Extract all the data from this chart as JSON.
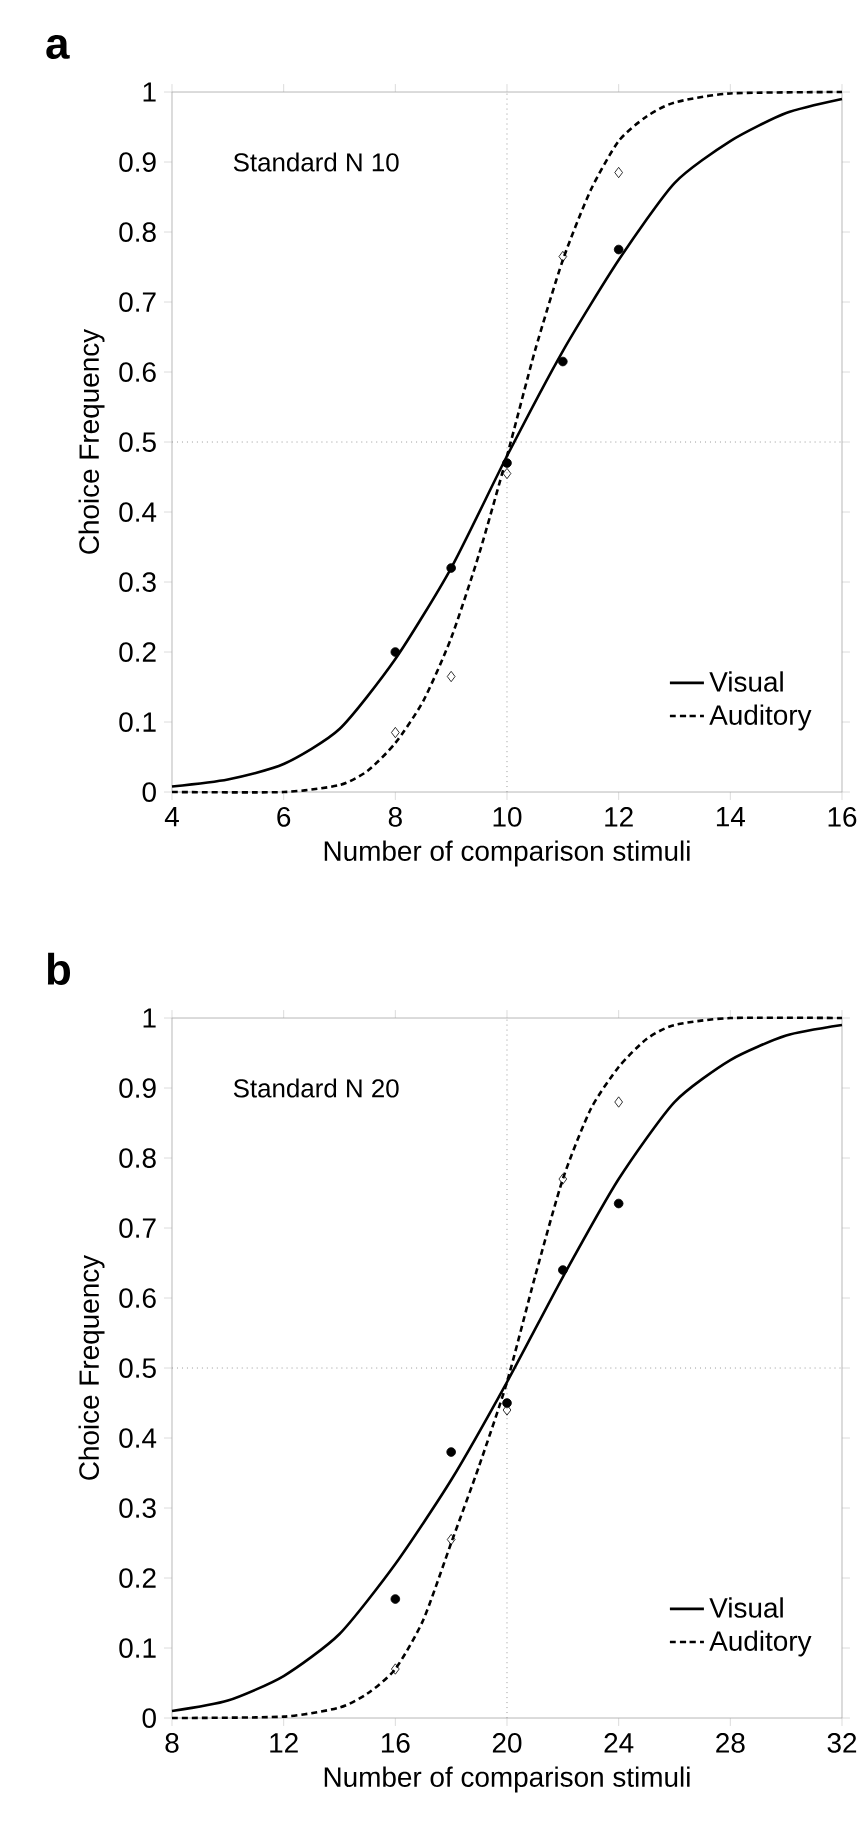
{
  "chart_data": [
    {
      "type": "line",
      "title": "a",
      "xlabel": "Number of comparison stimuli",
      "ylabel": "Choice Frequency",
      "annotations": [
        "Standard N 10"
      ],
      "xlim": [
        4,
        16
      ],
      "xticks": [
        4,
        6,
        8,
        10,
        12,
        14,
        16
      ],
      "ylim": [
        0,
        1
      ],
      "yticks": [
        0,
        0.1,
        0.2,
        0.3,
        0.4,
        0.5,
        0.6,
        0.7,
        0.8,
        0.9,
        1
      ],
      "ref_lines": [
        {
          "axis": "x",
          "value": 10,
          "color": "#999999",
          "line_style": "dotted"
        },
        {
          "axis": "y",
          "value": 0.5,
          "color": "#999999",
          "line_style": "dotted"
        }
      ],
      "legend": "bottom right",
      "series": [
        {
          "name": "Visual",
          "line_style": "solid",
          "color": "#000000",
          "x": [
            4,
            5,
            6,
            7,
            8,
            9,
            10,
            11,
            12,
            13,
            14,
            15,
            16
          ],
          "values": [
            0.008,
            0.018,
            0.04,
            0.09,
            0.19,
            0.32,
            0.48,
            0.63,
            0.76,
            0.87,
            0.93,
            0.97,
            0.99
          ]
        },
        {
          "type": "scatter",
          "marker": "circle",
          "color": "#000000",
          "x": [
            8,
            9,
            10,
            11,
            12
          ],
          "values": [
            0.2,
            0.32,
            0.47,
            0.615,
            0.775
          ]
        },
        {
          "name": "Auditory",
          "line_style": "dashed",
          "color": "#000000",
          "x": [
            4,
            6,
            7,
            7.5,
            8,
            8.5,
            9,
            9.5,
            10,
            10.5,
            11,
            11.5,
            12,
            12.5,
            13,
            14,
            16
          ],
          "values": [
            0,
            0,
            0.01,
            0.03,
            0.07,
            0.13,
            0.22,
            0.34,
            0.48,
            0.63,
            0.76,
            0.86,
            0.93,
            0.965,
            0.985,
            0.998,
            1
          ]
        },
        {
          "type": "scatter",
          "marker": "diamond",
          "color": "#000000",
          "x": [
            8,
            9,
            10,
            11,
            12
          ],
          "values": [
            0.085,
            0.165,
            0.455,
            0.765,
            0.885
          ]
        }
      ]
    },
    {
      "type": "line",
      "title": "b",
      "xlabel": "Number of comparison stimuli",
      "ylabel": "Choice Frequency",
      "annotations": [
        "Standard N 20"
      ],
      "xlim": [
        8,
        32
      ],
      "xticks": [
        8,
        12,
        16,
        20,
        24,
        28,
        32
      ],
      "ylim": [
        0,
        1
      ],
      "yticks": [
        0,
        0.1,
        0.2,
        0.3,
        0.4,
        0.5,
        0.6,
        0.7,
        0.8,
        0.9,
        1
      ],
      "ref_lines": [
        {
          "axis": "x",
          "value": 20,
          "color": "#999999",
          "line_style": "dotted"
        },
        {
          "axis": "y",
          "value": 0.5,
          "color": "#999999",
          "line_style": "dotted"
        }
      ],
      "legend": "bottom right",
      "series": [
        {
          "name": "Visual",
          "line_style": "solid",
          "color": "#000000",
          "x": [
            8,
            10,
            12,
            14,
            16,
            18,
            20,
            22,
            24,
            26,
            28,
            30,
            32
          ],
          "values": [
            0.01,
            0.025,
            0.06,
            0.12,
            0.22,
            0.34,
            0.48,
            0.63,
            0.77,
            0.88,
            0.94,
            0.975,
            0.99
          ]
        },
        {
          "type": "scatter",
          "marker": "circle",
          "color": "#000000",
          "x": [
            16,
            18,
            20,
            22,
            24
          ],
          "values": [
            0.17,
            0.38,
            0.45,
            0.64,
            0.735
          ]
        },
        {
          "name": "Auditory",
          "line_style": "dashed",
          "color": "#000000",
          "x": [
            8,
            12,
            14,
            15,
            16,
            17,
            18,
            19,
            20,
            21,
            22,
            23,
            24,
            25,
            26,
            28,
            32
          ],
          "values": [
            0,
            0.002,
            0.015,
            0.035,
            0.07,
            0.14,
            0.25,
            0.36,
            0.48,
            0.63,
            0.77,
            0.87,
            0.93,
            0.97,
            0.99,
            1,
            1
          ]
        },
        {
          "type": "scatter",
          "marker": "diamond",
          "color": "#000000",
          "x": [
            16,
            18,
            20,
            22,
            24
          ],
          "values": [
            0.07,
            0.255,
            0.44,
            0.77,
            0.88
          ]
        }
      ]
    }
  ]
}
